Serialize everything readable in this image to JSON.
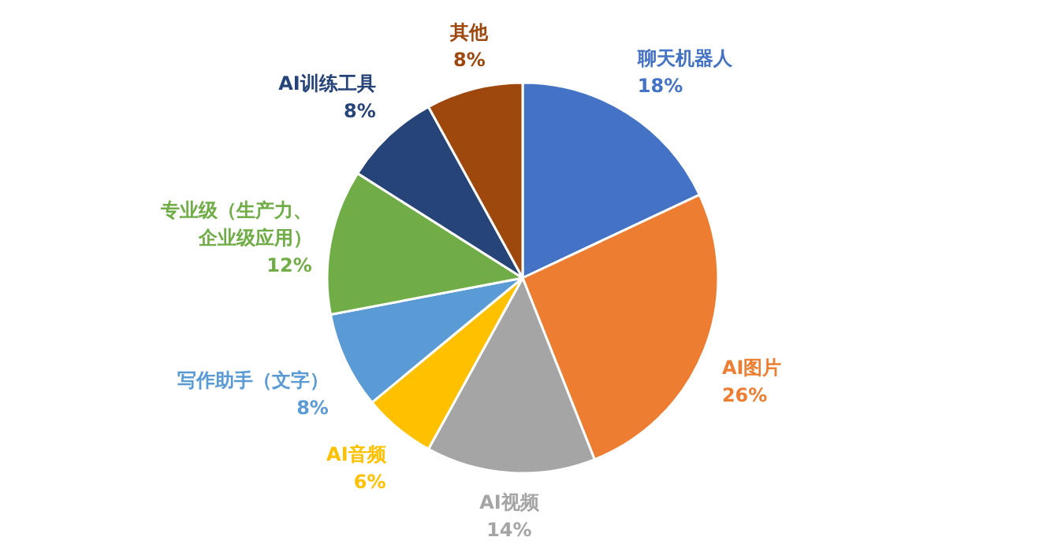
{
  "chart_data": {
    "type": "pie",
    "categories": [
      "聊天机器人",
      "AI图片",
      "AI视频",
      "AI音频",
      "写作助手（文字）",
      "专业级（生产力、企业级应用）",
      "AI训练工具",
      "其他"
    ],
    "values": [
      18,
      26,
      14,
      6,
      8,
      12,
      8,
      8
    ],
    "value_labels": [
      "18%",
      "26%",
      "14%",
      "6%",
      "8%",
      "12%",
      "8%",
      "8%"
    ],
    "colors": [
      "#4472c4",
      "#ed7d31",
      "#a5a5a5",
      "#ffc000",
      "#5b9bd5",
      "#70ad47",
      "#264478",
      "#9e480e"
    ],
    "legend": false
  }
}
